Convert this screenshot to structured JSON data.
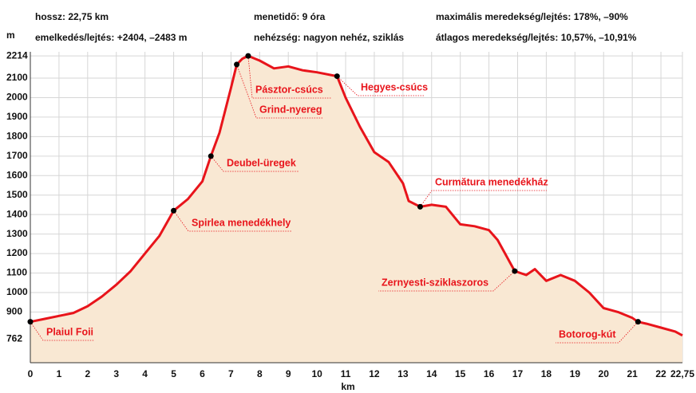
{
  "chart_data": {
    "type": "area",
    "info": [
      "hossz: 22,75 km",
      "emelkedés/lejtés: +2404, –2483 m",
      "menetidő: 9 óra",
      "nehézség: nagyon nehéz, sziklás",
      "maximális meredekség/lejtés: 178%, –90%",
      "átlagos meredekség/lejtés: 10,57%, –10,91%"
    ],
    "y_label": "m",
    "x_label": "km",
    "color": "#e8141b",
    "fill": "#f9e8d3",
    "grid": true,
    "xlim": [
      0,
      22.75
    ],
    "ylim": [
      640,
      2235
    ],
    "xticks": [
      0,
      1,
      2,
      3,
      4,
      5,
      6,
      7,
      8,
      9,
      10,
      11,
      12,
      13,
      14,
      15,
      16,
      17,
      18,
      19,
      20,
      21,
      22,
      {
        "value": 22.75,
        "label": "22,75"
      }
    ],
    "yticks": [
      762,
      900,
      1000,
      1100,
      1200,
      1300,
      1400,
      1500,
      1600,
      1700,
      1800,
      1900,
      2000,
      2100,
      2214
    ],
    "x": [
      0,
      0.5,
      1,
      1.5,
      2,
      2.5,
      3,
      3.5,
      4,
      4.5,
      5,
      5.5,
      6,
      6.3,
      6.6,
      7,
      7.2,
      7.4,
      7.6,
      8,
      8.5,
      9,
      9.5,
      10,
      10.7,
      11,
      11.5,
      12,
      12.5,
      13,
      13.2,
      13.6,
      14,
      14.5,
      15,
      15.5,
      16,
      16.3,
      16.9,
      17.3,
      17.6,
      18,
      18.5,
      19,
      19.5,
      20,
      20.5,
      21,
      21.2,
      21.5,
      22,
      22.5,
      22.75
    ],
    "values": [
      850,
      865,
      880,
      895,
      930,
      980,
      1040,
      1110,
      1200,
      1290,
      1420,
      1480,
      1570,
      1700,
      1820,
      2050,
      2170,
      2200,
      2214,
      2190,
      2150,
      2160,
      2140,
      2130,
      2110,
      2000,
      1850,
      1720,
      1670,
      1560,
      1470,
      1440,
      1450,
      1440,
      1350,
      1340,
      1320,
      1270,
      1110,
      1090,
      1120,
      1060,
      1090,
      1060,
      1000,
      920,
      900,
      870,
      850,
      840,
      820,
      800,
      780
    ],
    "points": [
      {
        "label": "Plaiul Foii",
        "x": 0,
        "y": 850
      },
      {
        "label": "Spirlea menedékhely",
        "x": 5,
        "y": 1420
      },
      {
        "label": "Deubel-üregek",
        "x": 6.3,
        "y": 1700
      },
      {
        "label": "Grind-nyereg",
        "x": 7.2,
        "y": 2170
      },
      {
        "label": "Pásztor-csúcs",
        "x": 7.6,
        "y": 2214
      },
      {
        "label": "Hegyes-csúcs",
        "x": 10.7,
        "y": 2110
      },
      {
        "label": "Curmătura menedékház",
        "x": 13.6,
        "y": 1440
      },
      {
        "label": "Zernyesti-sziklaszoros",
        "x": 16.9,
        "y": 1110
      },
      {
        "label": "Botorog-kút",
        "x": 21.2,
        "y": 850
      }
    ]
  }
}
